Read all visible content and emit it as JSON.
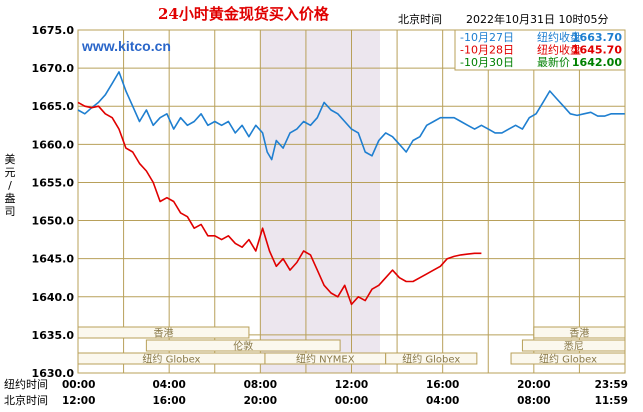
{
  "chart_data": {
    "type": "line",
    "title": "24小时黄金现货买入价格",
    "timezone_label": "北京时间",
    "timestamp": "2022年10月31日 10时05分",
    "watermark": "www.kitco.cn",
    "ylabel": "美元/盎司",
    "ylim": [
      1630,
      1675
    ],
    "y_ticks": [
      "1675.0",
      "1670.0",
      "1665.0",
      "1660.0",
      "1655.0",
      "1650.0",
      "1645.0",
      "1640.0",
      "1635.0",
      "1630.0"
    ],
    "grid": true,
    "legend_position": "top-right",
    "row_labels": [
      "纽约时间",
      "北京时间"
    ],
    "x_ticks_ny": [
      "00:00",
      "04:00",
      "08:00",
      "12:00",
      "16:00",
      "20:00",
      "23:59"
    ],
    "x_ticks_bj": [
      "12:00",
      "16:00",
      "20:00",
      "00:00",
      "04:00",
      "08:00",
      "11:59"
    ],
    "shaded_range_ny_hours": [
      8,
      13.25
    ],
    "markets": [
      {
        "name": "香港",
        "row": 1,
        "ranges": [
          [
            0,
            7.5
          ],
          [
            20,
            24
          ]
        ]
      },
      {
        "name": "伦敦",
        "row": 2,
        "ranges": [
          [
            3,
            11.5
          ]
        ]
      },
      {
        "name": "纽约 NYMEX",
        "row": 3,
        "ranges": [
          [
            8.2,
            13.5
          ]
        ]
      },
      {
        "name": "纽约 Globex",
        "row": 3,
        "ranges": [
          [
            0,
            8.2
          ],
          [
            13.5,
            17.5
          ]
        ]
      },
      {
        "name": "悉尼",
        "row": 2,
        "ranges": [
          [
            19.5,
            24
          ]
        ]
      },
      {
        "name": "纽约 Globex",
        "row": 3,
        "ranges": [
          [
            19,
            24
          ]
        ]
      }
    ],
    "series": [
      {
        "name": "10月27日",
        "legend_text": "纽约收盘",
        "close": "1663.70",
        "color": "#1f7fd0",
        "x": [
          0,
          0.3,
          0.6,
          0.9,
          1.2,
          1.5,
          1.8,
          2.1,
          2.4,
          2.7,
          3.0,
          3.3,
          3.6,
          3.9,
          4.2,
          4.5,
          4.8,
          5.1,
          5.4,
          5.7,
          6.0,
          6.3,
          6.6,
          6.9,
          7.2,
          7.5,
          7.8,
          8.1,
          8.3,
          8.5,
          8.7,
          9.0,
          9.3,
          9.6,
          9.9,
          10.2,
          10.5,
          10.8,
          11.1,
          11.4,
          11.7,
          12.0,
          12.3,
          12.6,
          12.9,
          13.2,
          13.5,
          13.8,
          14.1,
          14.4,
          14.7,
          15.0,
          15.3,
          15.6,
          15.9,
          16.2,
          16.5,
          16.8,
          17.1,
          17.4,
          17.7,
          18.0,
          18.3,
          18.6,
          18.9,
          19.2,
          19.5,
          19.8,
          20.1,
          20.4,
          20.7,
          21.0,
          21.3,
          21.6,
          21.9,
          22.2,
          22.5,
          22.8,
          23.1,
          23.4,
          23.7,
          23.99
        ],
        "values": [
          1664.5,
          1664.0,
          1664.8,
          1665.5,
          1666.5,
          1668.0,
          1669.5,
          1667.0,
          1665.0,
          1663.0,
          1664.5,
          1662.5,
          1663.5,
          1664.0,
          1662.0,
          1663.5,
          1662.5,
          1663.0,
          1664.0,
          1662.5,
          1663.0,
          1662.5,
          1663.0,
          1661.5,
          1662.5,
          1661.0,
          1662.5,
          1661.5,
          1659.0,
          1658.0,
          1660.5,
          1659.5,
          1661.5,
          1662.0,
          1663.0,
          1662.5,
          1663.5,
          1665.5,
          1664.5,
          1664.0,
          1663.0,
          1662.0,
          1661.5,
          1659.0,
          1658.5,
          1660.5,
          1661.5,
          1661.0,
          1660.0,
          1659.0,
          1660.5,
          1661.0,
          1662.5,
          1663.0,
          1663.5,
          1663.5,
          1663.5,
          1663.0,
          1662.5,
          1662.0,
          1662.5,
          1662.0,
          1661.5,
          1661.5,
          1662.0,
          1662.5,
          1662.0,
          1663.5,
          1664.0,
          1665.5,
          1667.0,
          1666.0,
          1665.0,
          1664.0,
          1663.8,
          1664.0,
          1664.2,
          1663.7,
          1663.7,
          1664.0,
          1664.0,
          1664.0
        ]
      },
      {
        "name": "10月28日",
        "legend_text": "纽约收盘",
        "close": "1645.70",
        "color": "#e00000",
        "x": [
          0,
          0.3,
          0.6,
          0.9,
          1.2,
          1.5,
          1.8,
          2.1,
          2.4,
          2.7,
          3.0,
          3.3,
          3.6,
          3.9,
          4.2,
          4.5,
          4.8,
          5.1,
          5.4,
          5.7,
          6.0,
          6.3,
          6.6,
          6.9,
          7.2,
          7.5,
          7.8,
          8.1,
          8.4,
          8.7,
          9.0,
          9.3,
          9.6,
          9.9,
          10.2,
          10.5,
          10.8,
          11.1,
          11.4,
          11.7,
          12.0,
          12.3,
          12.6,
          12.9,
          13.2,
          13.5,
          13.8,
          14.1,
          14.4,
          14.7,
          15.0,
          15.3,
          15.6,
          15.9,
          16.2,
          16.5,
          16.8,
          17.1,
          17.4,
          17.7
        ],
        "values": [
          1665.5,
          1665.0,
          1664.8,
          1665.0,
          1664.0,
          1663.5,
          1662.0,
          1659.5,
          1659.0,
          1657.5,
          1656.5,
          1655.0,
          1652.5,
          1653.0,
          1652.5,
          1651.0,
          1650.5,
          1649.0,
          1649.5,
          1648.0,
          1648.0,
          1647.5,
          1648.0,
          1647.0,
          1646.5,
          1647.5,
          1646.0,
          1649.0,
          1646.0,
          1644.0,
          1645.0,
          1643.5,
          1644.5,
          1646.0,
          1645.5,
          1643.5,
          1641.5,
          1640.5,
          1640.0,
          1641.5,
          1639.0,
          1640.0,
          1639.5,
          1641.0,
          1641.5,
          1642.5,
          1643.5,
          1642.5,
          1642.0,
          1642.0,
          1642.5,
          1643.0,
          1643.5,
          1644.0,
          1645.0,
          1645.3,
          1645.5,
          1645.6,
          1645.7,
          1645.7
        ]
      },
      {
        "name": "10月30日",
        "legend_text": "最新价",
        "close": "1642.00",
        "color": "#008000",
        "x": [],
        "values": []
      }
    ]
  }
}
